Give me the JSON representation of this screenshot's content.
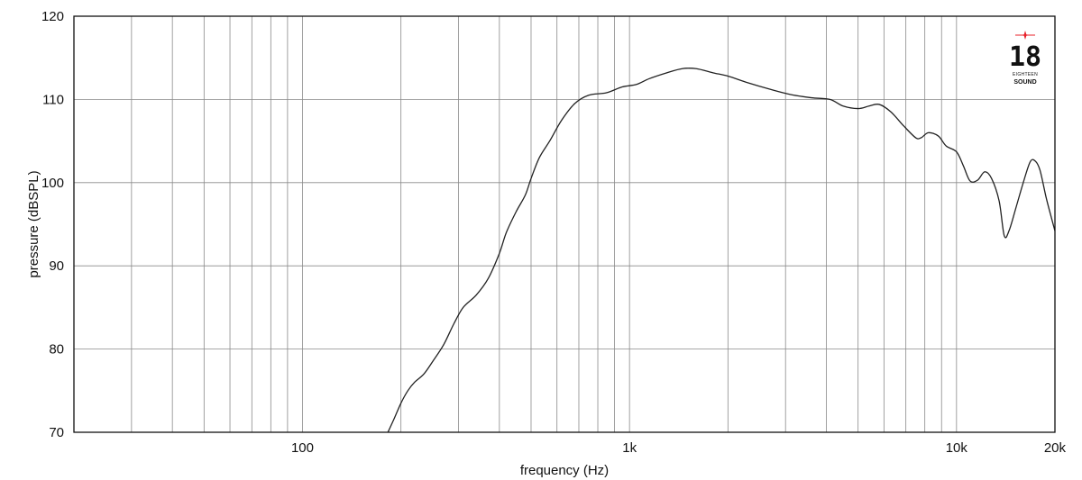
{
  "chart_data": {
    "type": "line",
    "xlabel": "frequency (Hz)",
    "ylabel": "pressure (dBSPL)",
    "x_scale": "log",
    "xlim": [
      20,
      20000
    ],
    "ylim": [
      70,
      120
    ],
    "grid": true,
    "x_ticks": [
      {
        "value": 100,
        "label": "100"
      },
      {
        "value": 1000,
        "label": "1k"
      },
      {
        "value": 10000,
        "label": "10k"
      },
      {
        "value": 20000,
        "label": "20k"
      }
    ],
    "y_ticks": [
      70,
      80,
      90,
      100,
      110,
      120
    ],
    "series": [
      {
        "color": "#222222",
        "points": [
          [
            180,
            69.5
          ],
          [
            190,
            71.5
          ],
          [
            200,
            73.5
          ],
          [
            210,
            75
          ],
          [
            220,
            76
          ],
          [
            235,
            77
          ],
          [
            250,
            78.5
          ],
          [
            270,
            80.5
          ],
          [
            290,
            83
          ],
          [
            310,
            85
          ],
          [
            340,
            86.5
          ],
          [
            370,
            88.5
          ],
          [
            400,
            91.5
          ],
          [
            420,
            94
          ],
          [
            450,
            96.5
          ],
          [
            480,
            98.5
          ],
          [
            500,
            100.5
          ],
          [
            530,
            103
          ],
          [
            570,
            105
          ],
          [
            620,
            107.5
          ],
          [
            680,
            109.5
          ],
          [
            750,
            110.5
          ],
          [
            850,
            110.8
          ],
          [
            950,
            111.5
          ],
          [
            1050,
            111.8
          ],
          [
            1150,
            112.5
          ],
          [
            1300,
            113.2
          ],
          [
            1450,
            113.7
          ],
          [
            1600,
            113.7
          ],
          [
            1800,
            113.2
          ],
          [
            2000,
            112.8
          ],
          [
            2300,
            112
          ],
          [
            2700,
            111.2
          ],
          [
            3100,
            110.6
          ],
          [
            3600,
            110.2
          ],
          [
            4100,
            110
          ],
          [
            4500,
            109.2
          ],
          [
            5000,
            108.9
          ],
          [
            5400,
            109.2
          ],
          [
            5800,
            109.4
          ],
          [
            6300,
            108.5
          ],
          [
            6900,
            106.8
          ],
          [
            7500,
            105.4
          ],
          [
            7800,
            105.4
          ],
          [
            8200,
            106
          ],
          [
            8800,
            105.6
          ],
          [
            9300,
            104.4
          ],
          [
            10000,
            103.7
          ],
          [
            10500,
            102
          ],
          [
            11000,
            100.2
          ],
          [
            11600,
            100.3
          ],
          [
            12200,
            101.3
          ],
          [
            12800,
            100.5
          ],
          [
            13500,
            97.8
          ],
          [
            14000,
            93.6
          ],
          [
            14500,
            94.3
          ],
          [
            15200,
            97
          ],
          [
            16000,
            100
          ],
          [
            16800,
            102.5
          ],
          [
            17400,
            102.6
          ],
          [
            18000,
            101.5
          ],
          [
            18800,
            98.2
          ],
          [
            19500,
            95.8
          ],
          [
            20000,
            94.2
          ]
        ]
      }
    ]
  },
  "logo": {
    "number": "18",
    "small_text": "EIGHTEEN",
    "word": "SOUND",
    "star_color": "#e8202a"
  }
}
